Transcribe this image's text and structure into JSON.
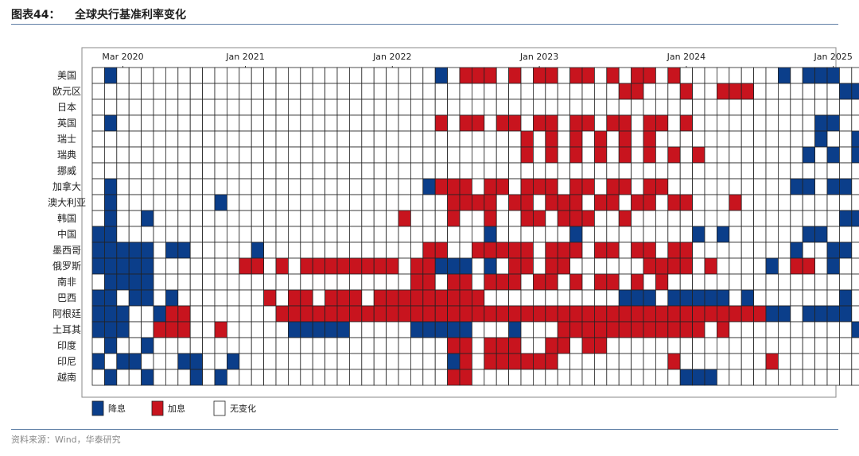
{
  "header": {
    "figure_label": "图表44：",
    "title": "全球央行基准利率变化"
  },
  "footer": {
    "source": "资料来源：Wind，华泰研究"
  },
  "colors": {
    "cut": "#0b3e8a",
    "hike": "#c8141e",
    "none": "#ffffff",
    "grid": "#222222",
    "frame": "#8a8a8a"
  },
  "chart_data": {
    "type": "heatmap",
    "title": "全球央行基准利率变化",
    "x_ticks": [
      {
        "label": "Mar 2020",
        "month": "2020-03"
      },
      {
        "label": "Jan 2021",
        "month": "2021-01"
      },
      {
        "label": "Jan 2022",
        "month": "2022-01"
      },
      {
        "label": "Jan 2023",
        "month": "2023-01"
      },
      {
        "label": "Jan 2024",
        "month": "2024-01"
      },
      {
        "label": "Jan 2025",
        "month": "2025-01"
      }
    ],
    "months": [
      "2020-01",
      "2020-02",
      "2020-03",
      "2020-04",
      "2020-05",
      "2020-06",
      "2020-07",
      "2020-08",
      "2020-09",
      "2020-10",
      "2020-11",
      "2020-12",
      "2021-01",
      "2021-02",
      "2021-03",
      "2021-04",
      "2021-05",
      "2021-06",
      "2021-07",
      "2021-08",
      "2021-09",
      "2021-10",
      "2021-11",
      "2021-12",
      "2022-01",
      "2022-02",
      "2022-03",
      "2022-04",
      "2022-05",
      "2022-06",
      "2022-07",
      "2022-08",
      "2022-09",
      "2022-10",
      "2022-11",
      "2022-12",
      "2023-01",
      "2023-02",
      "2023-03",
      "2023-04",
      "2023-05",
      "2023-06",
      "2023-07",
      "2023-08",
      "2023-09",
      "2023-10",
      "2023-11",
      "2023-12",
      "2024-01",
      "2024-02",
      "2024-03",
      "2024-04",
      "2024-05",
      "2024-06",
      "2024-07",
      "2024-08",
      "2024-09",
      "2024-10",
      "2024-11",
      "2024-12",
      "2025-01",
      "2025-02",
      "2025-03",
      "2025-04",
      "2025-05",
      "2025-06"
    ],
    "countries": [
      "美国",
      "欧元区",
      "日本",
      "英国",
      "瑞士",
      "瑞典",
      "挪威",
      "加拿大",
      "澳大利亚",
      "韩国",
      "中国",
      "墨西哥",
      "俄罗斯",
      "南非",
      "巴西",
      "阿根廷",
      "土耳其",
      "印度",
      "印尼",
      "越南"
    ],
    "legend": [
      {
        "key": "C",
        "label": "降息"
      },
      {
        "key": "H",
        "label": "加息"
      },
      {
        "key": "N",
        "label": "无变化"
      }
    ],
    "encoding": {
      "C": "降息",
      "H": "加息",
      "N": "无变化"
    },
    "rows": [
      ".C..........................C.HHH.H.HH.HH.H.HH.H........C.CCC....",
      "...........................................HH...H..HHH.......CC..C",
      "................................................................H..H",
      ".C..........................H.HH.HH.HH.HH.HH.HH.H..........CC...C.",
      "...................................H.H.H.H.H.H.............C..C.C.C.",
      "...................................H.H.H.H.H.H.H.H........C.C.CC.CCC",
      ".................................................................",
      ".C.........................CHHH.HH.HHH.HH.HH.HH..........CC.CC.C...",
      ".C........C..................HHHH.HH.HHH.HH.HH.HH...H.............",
      ".C..C....................H...H..H..HH.HHH..H.................CC....",
      "CC..............................C......C.........C.C......CC.......",
      "CCCCC.CC.....C.............HH..HHHHH.HHH.HH.HH.HH........C..CC.CC.",
      "CCCCC.......HH.H.HHHHHHHH.HHCCC.C.HH.HH......HHHH.H....C.HH.C.....",
      ".CCCC.....................HH.HH.HHH.HH.H.HH.H.H................C.C.",
      "CC.CC.C.......H.HH.HHH.HHHHHHHHH...........CCC.CCCCC.C.......C.HH.",
      "CCC..CHH.......HHHHHHHHHHHHHHHHHHHHHHHHHHHHHHHHHHHHHHHHCC.CCCC.C..CCC",
      "CCC..HHH..H.....CCCCC.....CCCCC...C...HHHHHHHHHHHH.H..........C...",
      ".C..C........................HH.HHH..HH.HH........................",
      "C.CC...CC..C.................CH.HHHHHH.........H.......H.......C..C",
      ".C..C...C.C..................HH.................CCC..............."
    ]
  }
}
